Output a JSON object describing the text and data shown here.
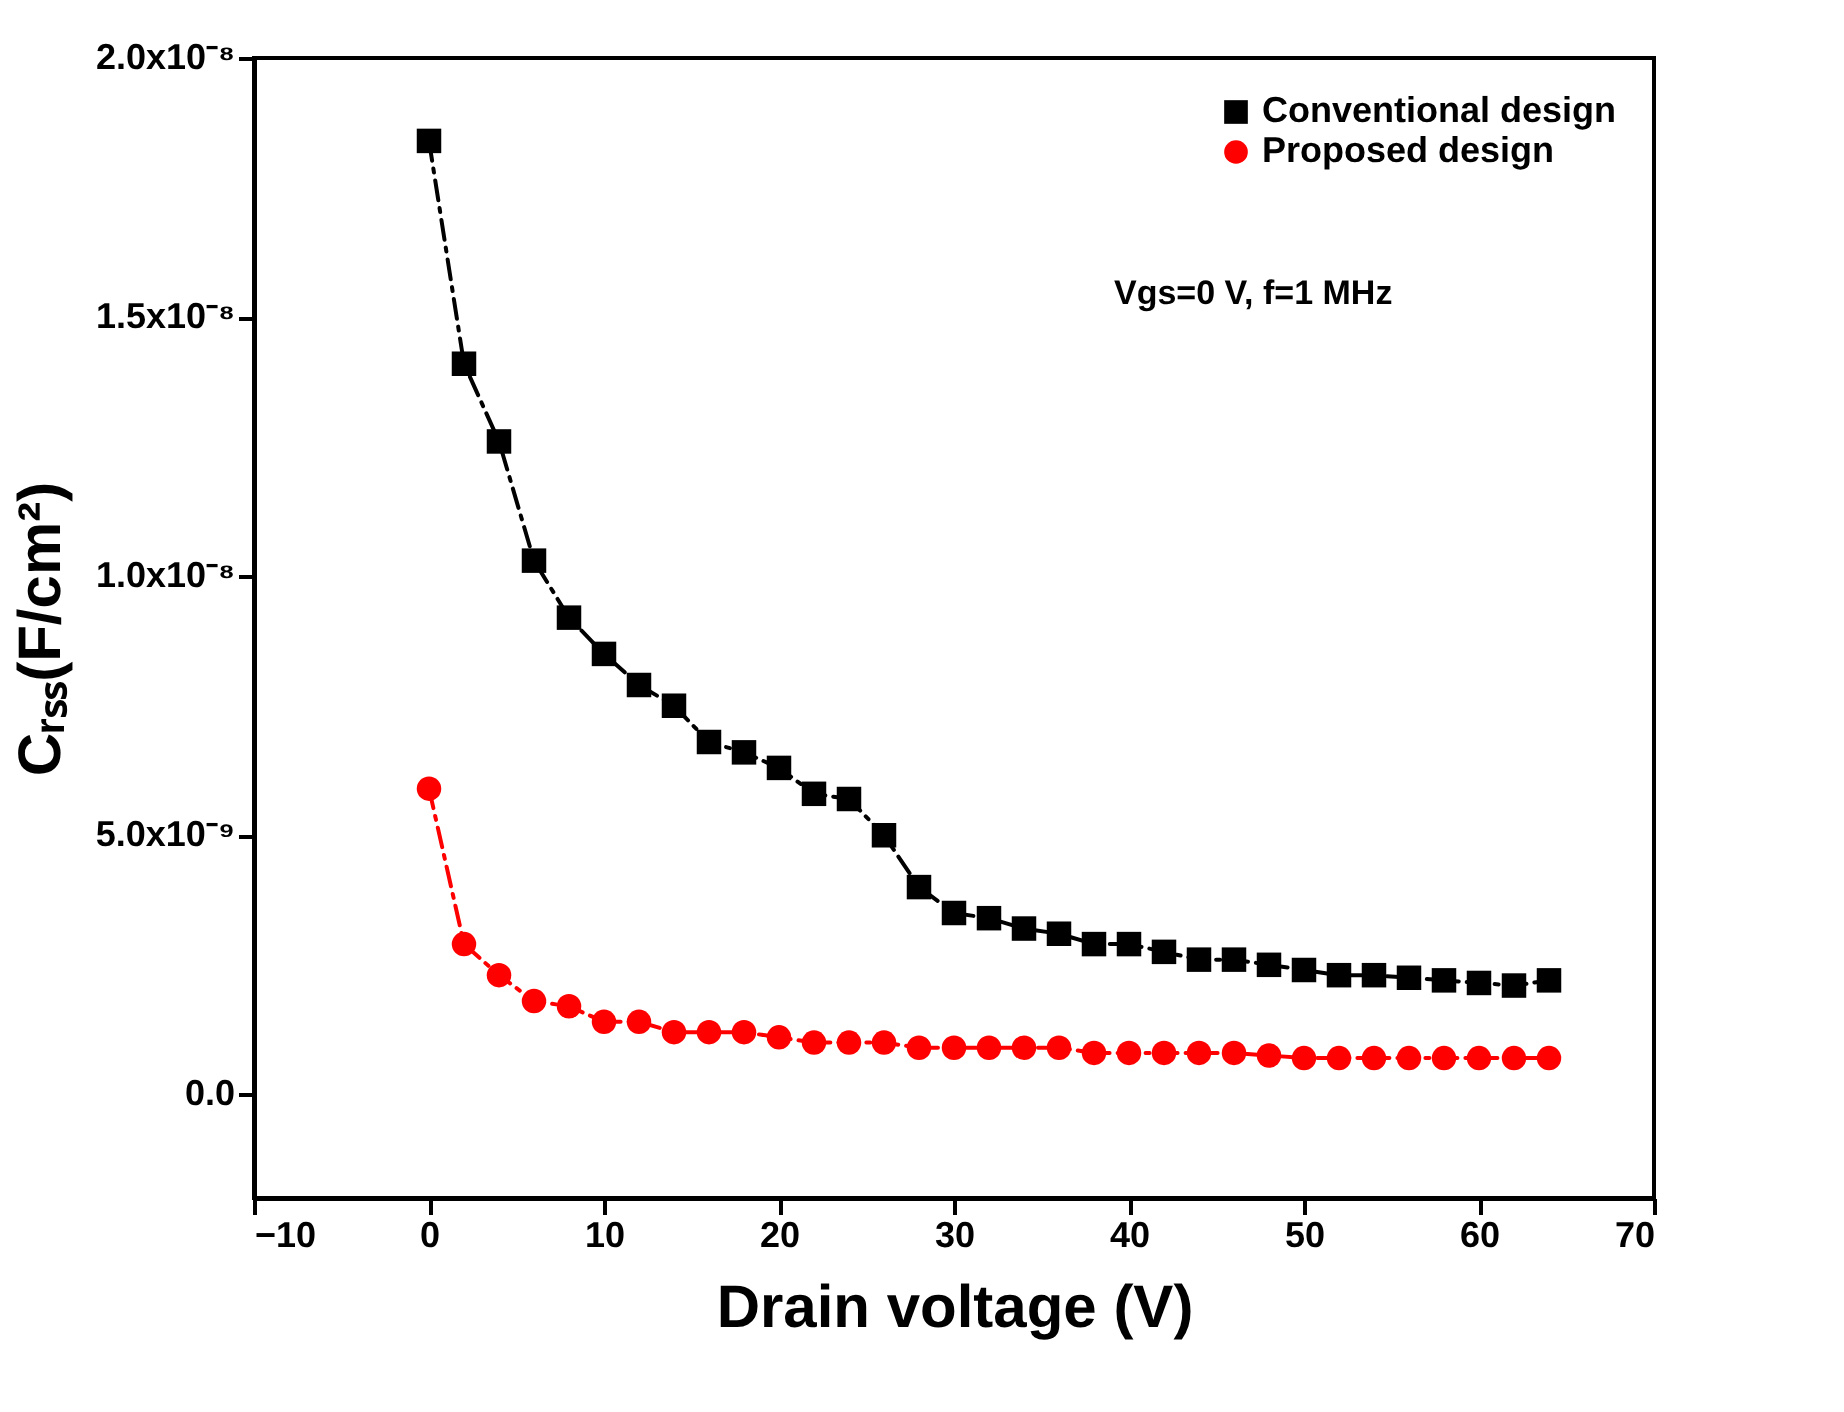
{
  "chart_data": {
    "type": "line",
    "xlabel": "Drain voltage (V)",
    "ylabel": "Cᵣₛₛ(F/cm²)",
    "x": [
      0,
      2,
      4,
      6,
      8,
      10,
      12,
      14,
      16,
      18,
      20,
      22,
      24,
      26,
      28,
      30,
      32,
      34,
      36,
      38,
      40,
      42,
      44,
      46,
      48,
      50,
      52,
      54,
      56,
      58,
      60,
      62,
      64
    ],
    "series": [
      {
        "name": "Conventional design",
        "color": "#000000",
        "marker": "square",
        "values": [
          1.84e-08,
          1.41e-08,
          1.26e-08,
          1.03e-08,
          9.2e-09,
          8.5e-09,
          7.9e-09,
          7.5e-09,
          6.8e-09,
          6.6e-09,
          6.3e-09,
          5.8e-09,
          5.7e-09,
          5e-09,
          4e-09,
          3.5e-09,
          3.4e-09,
          3.2e-09,
          3.1e-09,
          2.9e-09,
          2.9e-09,
          2.75e-09,
          2.6e-09,
          2.6e-09,
          2.5e-09,
          2.4e-09,
          2.3e-09,
          2.3e-09,
          2.25e-09,
          2.2e-09,
          2.15e-09,
          2.1e-09,
          2.2e-09
        ]
      },
      {
        "name": "Proposed design",
        "color": "#ff0000",
        "marker": "circle",
        "values": [
          5.9e-09,
          2.9e-09,
          2.3e-09,
          1.8e-09,
          1.7e-09,
          1.4e-09,
          1.4e-09,
          1.2e-09,
          1.2e-09,
          1.2e-09,
          1.1e-09,
          1e-09,
          1e-09,
          1e-09,
          9e-10,
          9e-10,
          9e-10,
          9e-10,
          9e-10,
          8e-10,
          8e-10,
          8e-10,
          8e-10,
          8e-10,
          7.5e-10,
          7e-10,
          7e-10,
          7e-10,
          7e-10,
          7e-10,
          7e-10,
          7e-10,
          7e-10
        ]
      }
    ],
    "xlim": [
      -10,
      70
    ],
    "xticks": [
      -10,
      0,
      10,
      20,
      30,
      40,
      50,
      60,
      70
    ],
    "ylim": [
      -2e-09,
      2e-08
    ],
    "yticks": [
      {
        "value": 0,
        "label": "0.0"
      },
      {
        "value": 5e-09,
        "label": "5.0x10⁻⁹"
      },
      {
        "value": 1e-08,
        "label": "1.0x10⁻⁸"
      },
      {
        "value": 1.5e-08,
        "label": "1.5x10⁻⁸"
      },
      {
        "value": 2e-08,
        "label": "2.0x10⁻⁸"
      }
    ],
    "annotations": [
      "Vgs=0 V, f=1 MHz"
    ],
    "legend": "top right",
    "grid": false,
    "line_style": "dashed"
  }
}
